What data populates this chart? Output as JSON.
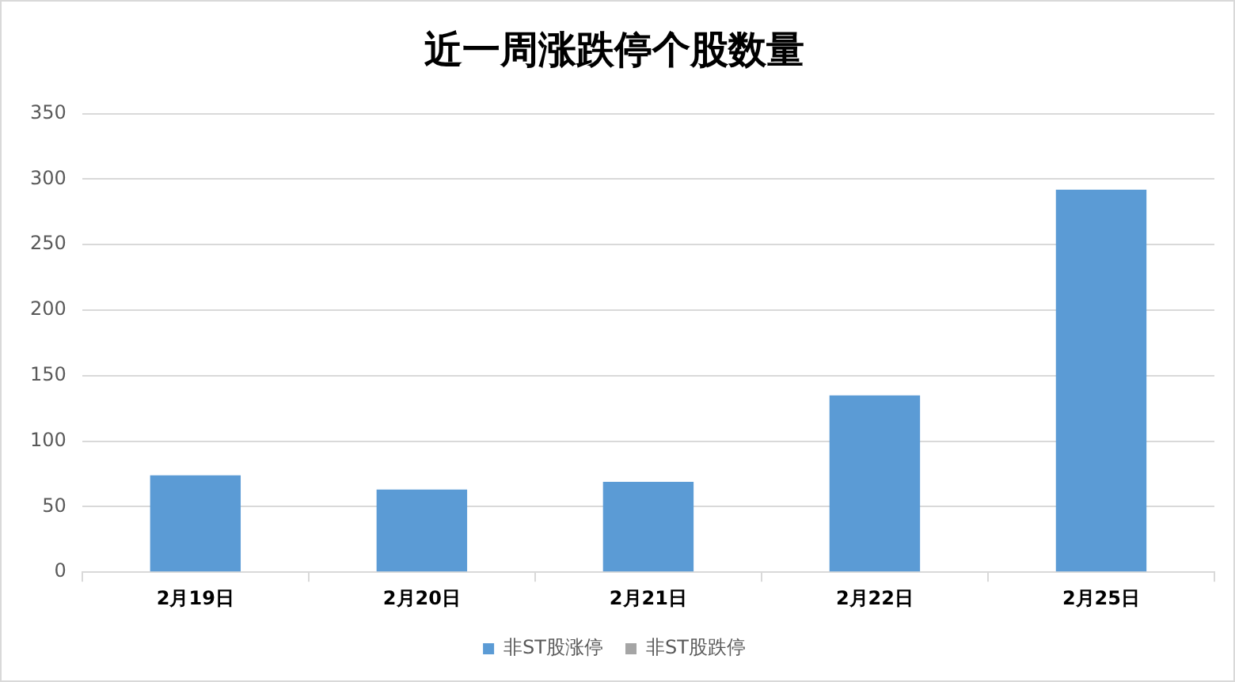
{
  "chart_data": {
    "type": "bar",
    "title": "近一周涨跌停个股数量",
    "categories": [
      "2月19日",
      "2月20日",
      "2月21日",
      "2月22日",
      "2月25日"
    ],
    "series": [
      {
        "name": "非ST股涨停",
        "color": "#5b9bd5",
        "values": [
          74,
          63,
          69,
          135,
          292
        ]
      },
      {
        "name": "非ST股跌停",
        "color": "#a5a5a5",
        "values": [
          null,
          null,
          null,
          null,
          null
        ]
      }
    ],
    "ylim": [
      0,
      350
    ],
    "yticks": [
      0,
      50,
      100,
      150,
      200,
      250,
      300,
      350
    ],
    "grid": "y",
    "legend": "bottom"
  }
}
